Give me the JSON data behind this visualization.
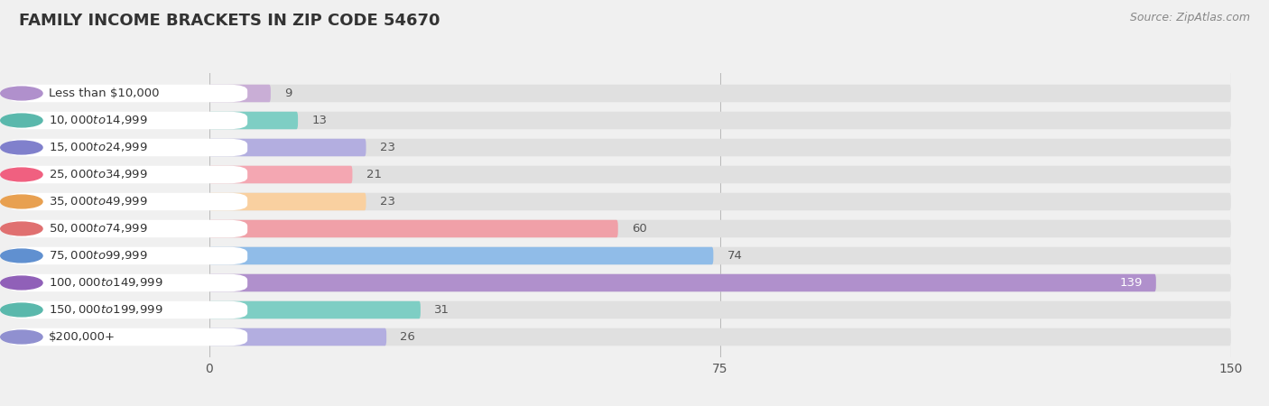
{
  "title": "FAMILY INCOME BRACKETS IN ZIP CODE 54670",
  "source": "Source: ZipAtlas.com",
  "categories": [
    "Less than $10,000",
    "$10,000 to $14,999",
    "$15,000 to $24,999",
    "$25,000 to $34,999",
    "$35,000 to $49,999",
    "$50,000 to $74,999",
    "$75,000 to $99,999",
    "$100,000 to $149,999",
    "$150,000 to $199,999",
    "$200,000+"
  ],
  "values": [
    9,
    13,
    23,
    21,
    23,
    60,
    74,
    139,
    31,
    26
  ],
  "bar_colors": [
    "#c9aed6",
    "#7ecec4",
    "#b3aee0",
    "#f4a7b2",
    "#f9d0a0",
    "#f0a0a8",
    "#90bce8",
    "#b090cc",
    "#7ecec4",
    "#b3aee0"
  ],
  "dot_colors": [
    "#b090cc",
    "#5ab8ac",
    "#8080cc",
    "#f06080",
    "#e8a050",
    "#e07070",
    "#6090d0",
    "#9060b8",
    "#5ab8ac",
    "#9090d0"
  ],
  "background_color": "#f0f0f0",
  "bar_bg_color": "#e0e0e0",
  "label_bg_color": "#ffffff",
  "xlim": [
    0,
    150
  ],
  "xticks": [
    0,
    75,
    150
  ],
  "title_fontsize": 13,
  "label_fontsize": 9.5,
  "value_fontsize": 9.5,
  "bar_height": 0.65
}
